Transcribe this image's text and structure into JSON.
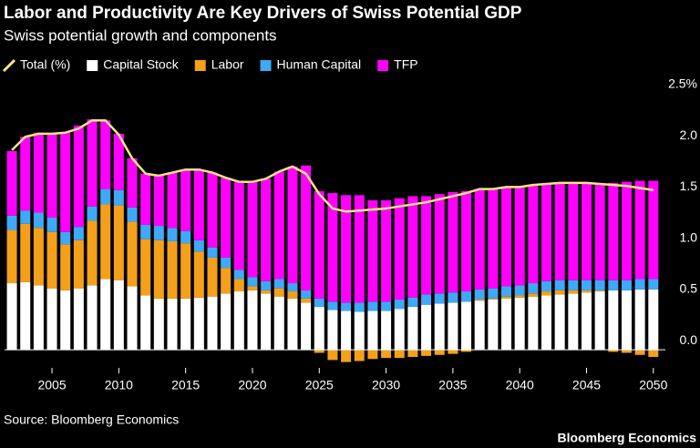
{
  "chart_data": {
    "type": "bar",
    "title": "Labor and Productivity Are Key Drivers of Swiss Potential GDP",
    "subtitle": "Swiss potential growth and components",
    "source": "Source: Bloomberg Economics",
    "footer": "Bloomberg Economics",
    "stacked": true,
    "x": [
      2002,
      2003,
      2004,
      2005,
      2006,
      2007,
      2008,
      2009,
      2010,
      2011,
      2012,
      2013,
      2014,
      2015,
      2016,
      2017,
      2018,
      2019,
      2020,
      2021,
      2022,
      2023,
      2024,
      2025,
      2026,
      2027,
      2028,
      2029,
      2030,
      2031,
      2032,
      2033,
      2034,
      2035,
      2036,
      2037,
      2038,
      2039,
      2040,
      2041,
      2042,
      2043,
      2044,
      2045,
      2046,
      2047,
      2048,
      2049,
      2050
    ],
    "xlim": [
      2001.45,
      2050.9
    ],
    "xticks": [
      2005,
      2010,
      2015,
      2020,
      2025,
      2030,
      2035,
      2040,
      2045,
      2050
    ],
    "ylim": [
      -0.15,
      2.5
    ],
    "yticks": [
      {
        "value": 0,
        "label": "0.0"
      },
      0.5,
      {
        "value": 1,
        "label": "1.0"
      },
      1.5,
      {
        "value": 2,
        "label": "2.0"
      },
      {
        "value": 2.5,
        "label": "2.5%"
      }
    ],
    "grid": false,
    "legend": "top-left",
    "series": [
      {
        "name": "Total (%)",
        "type": "line",
        "color": "#ffe680",
        "values": [
          1.95,
          2.08,
          2.11,
          2.11,
          2.12,
          2.16,
          2.24,
          2.24,
          2.1,
          1.87,
          1.72,
          1.7,
          1.73,
          1.76,
          1.76,
          1.73,
          1.68,
          1.64,
          1.64,
          1.67,
          1.74,
          1.79,
          1.72,
          1.52,
          1.38,
          1.35,
          1.36,
          1.37,
          1.38,
          1.4,
          1.42,
          1.44,
          1.47,
          1.5,
          1.53,
          1.57,
          1.57,
          1.59,
          1.59,
          1.61,
          1.62,
          1.63,
          1.63,
          1.63,
          1.62,
          1.61,
          1.6,
          1.58,
          1.56
        ]
      },
      {
        "name": "Capital Stock",
        "color": "#ffffff",
        "values": [
          0.65,
          0.66,
          0.63,
          0.6,
          0.58,
          0.6,
          0.63,
          0.69,
          0.68,
          0.62,
          0.53,
          0.5,
          0.5,
          0.5,
          0.51,
          0.52,
          0.55,
          0.57,
          0.58,
          0.55,
          0.52,
          0.5,
          0.46,
          0.42,
          0.39,
          0.38,
          0.37,
          0.38,
          0.38,
          0.4,
          0.42,
          0.44,
          0.45,
          0.46,
          0.47,
          0.48,
          0.49,
          0.5,
          0.51,
          0.52,
          0.53,
          0.54,
          0.55,
          0.56,
          0.57,
          0.58,
          0.58,
          0.59,
          0.59
        ]
      },
      {
        "name": "Labor",
        "color": "#f5a01a",
        "values": [
          0.52,
          0.57,
          0.56,
          0.55,
          0.45,
          0.47,
          0.63,
          0.73,
          0.73,
          0.63,
          0.55,
          0.57,
          0.56,
          0.54,
          0.45,
          0.38,
          0.25,
          0.12,
          0.04,
          0.03,
          0.08,
          0.07,
          0.04,
          -0.03,
          -0.1,
          -0.12,
          -0.11,
          -0.09,
          -0.08,
          -0.08,
          -0.07,
          -0.06,
          -0.05,
          -0.04,
          -0.02,
          0.01,
          0.01,
          0.02,
          0.02,
          0.03,
          0.04,
          0.04,
          0.03,
          0.02,
          0.01,
          -0.02,
          -0.03,
          -0.05,
          -0.07
        ]
      },
      {
        "name": "Human Capital",
        "color": "#3fa9f5",
        "values": [
          0.14,
          0.13,
          0.15,
          0.14,
          0.12,
          0.13,
          0.14,
          0.15,
          0.15,
          0.14,
          0.14,
          0.14,
          0.13,
          0.12,
          0.11,
          0.1,
          0.1,
          0.09,
          0.09,
          0.09,
          0.09,
          0.08,
          0.08,
          0.08,
          0.08,
          0.08,
          0.09,
          0.09,
          0.09,
          0.09,
          0.09,
          0.1,
          0.1,
          0.1,
          0.1,
          0.1,
          0.1,
          0.1,
          0.1,
          0.1,
          0.1,
          0.1,
          0.1,
          0.1,
          0.1,
          0.1,
          0.1,
          0.1,
          0.1
        ]
      },
      {
        "name": "TFP",
        "color": "#ff00ff",
        "values": [
          0.63,
          0.72,
          0.78,
          0.82,
          0.97,
          0.99,
          0.85,
          0.67,
          0.55,
          0.48,
          0.5,
          0.49,
          0.54,
          0.6,
          0.69,
          0.73,
          0.78,
          0.86,
          0.93,
          1.0,
          1.05,
          1.14,
          1.22,
          1.05,
          1.06,
          1.05,
          1.05,
          0.99,
          0.99,
          0.99,
          0.99,
          0.96,
          0.97,
          0.98,
          0.98,
          0.98,
          0.97,
          0.97,
          0.96,
          0.96,
          0.95,
          0.95,
          0.95,
          0.95,
          0.94,
          0.95,
          0.96,
          0.96,
          0.96
        ]
      }
    ]
  }
}
